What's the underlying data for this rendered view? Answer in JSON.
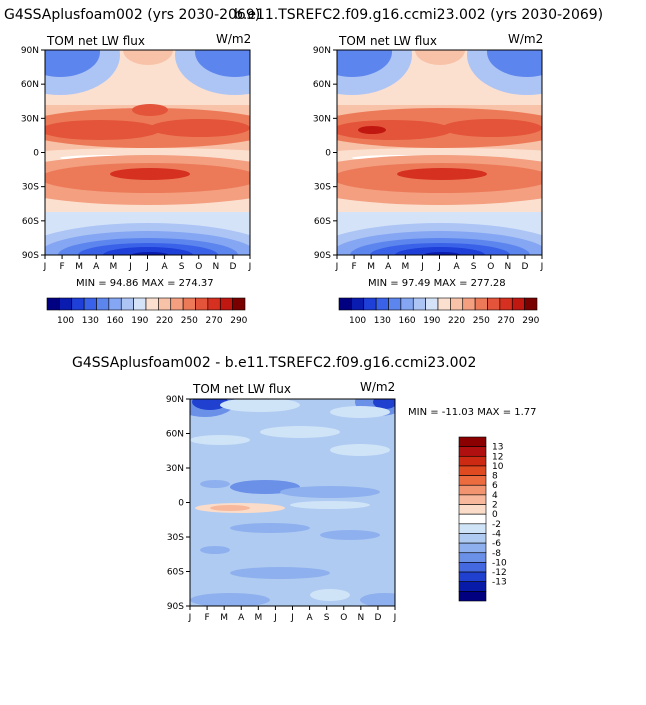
{
  "chart_data": [
    {
      "type": "heatmap",
      "title": "G4SSAplusfoam002 (yrs 2030-2069)",
      "subtitle": "TOM net LW flux",
      "units": "W/m2",
      "x_ticks": [
        "J",
        "F",
        "M",
        "A",
        "M",
        "J",
        "J",
        "A",
        "S",
        "O",
        "N",
        "D",
        "J"
      ],
      "y_ticks": [
        "90N",
        "60N",
        "30N",
        "0",
        "30S",
        "60S",
        "90S"
      ],
      "stats": "MIN =   94.86 MAX = 274.37",
      "min": 94.86,
      "max": 274.37,
      "colorbar_labels": [
        "100",
        "130",
        "160",
        "190",
        "220",
        "250",
        "270",
        "290"
      ],
      "colorscale": [
        "#000080",
        "#0a1bb0",
        "#1e3fd8",
        "#3a62e8",
        "#5d85ee",
        "#85a6f2",
        "#adc5f5",
        "#d5e3f8",
        "#fbe0d0",
        "#f8c2a8",
        "#f39f80",
        "#ec7a58",
        "#e3543a",
        "#d63020",
        "#c01810",
        "#7a0000"
      ]
    },
    {
      "type": "heatmap",
      "title": "b.e11.TSREFC2.f09.g16.ccmi23.002 (yrs 2030-2069)",
      "subtitle": "TOM net LW flux",
      "units": "W/m2",
      "x_ticks": [
        "J",
        "F",
        "M",
        "A",
        "M",
        "J",
        "J",
        "A",
        "S",
        "O",
        "N",
        "D",
        "J"
      ],
      "y_ticks": [
        "90N",
        "60N",
        "30N",
        "0",
        "30S",
        "60S",
        "90S"
      ],
      "stats": "MIN =   97.49 MAX = 277.28",
      "min": 97.49,
      "max": 277.28,
      "colorbar_labels": [
        "100",
        "130",
        "160",
        "190",
        "220",
        "250",
        "270",
        "290"
      ]
    },
    {
      "type": "heatmap",
      "title": "G4SSAplusfoam002 - b.e11.TSREFC2.f09.g16.ccmi23.002",
      "subtitle": "TOM net LW flux",
      "units": "W/m2",
      "x_ticks": [
        "J",
        "F",
        "M",
        "A",
        "M",
        "J",
        "J",
        "A",
        "S",
        "O",
        "N",
        "D",
        "J"
      ],
      "y_ticks": [
        "90N",
        "60N",
        "30N",
        "0",
        "30S",
        "60S",
        "90S"
      ],
      "stats": "MIN = -11.03 MAX =    1.77",
      "min": -11.03,
      "max": 1.77,
      "colorbar_labels": [
        "13",
        "12",
        "10",
        "8",
        "6",
        "4",
        "2",
        "0",
        "-2",
        "-4",
        "-6",
        "-8",
        "-10",
        "-12",
        "-13"
      ],
      "colorscale": [
        "#8b0000",
        "#b01010",
        "#cc2a12",
        "#e04a20",
        "#ec6c40",
        "#f39470",
        "#f7b89c",
        "#fbdcc8",
        "#ffffff",
        "#d0e4f8",
        "#b0cbf2",
        "#8eb0ee",
        "#6a90e8",
        "#4468e0",
        "#2040d0",
        "#081aa8",
        "#000080"
      ]
    }
  ]
}
